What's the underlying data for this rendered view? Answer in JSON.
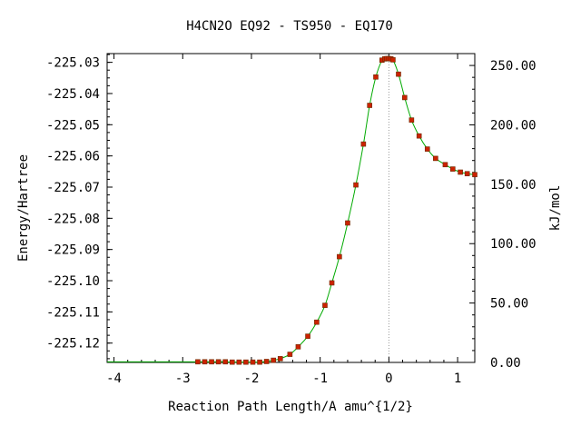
{
  "chart_data": {
    "type": "line",
    "title": "H4CN2O   EQ92 - TS950 - EQ170",
    "xlabel": "Reaction Path Length/A amu^{1/2}",
    "ylabel": "Energy/Hartree",
    "y2label": "kJ/mol",
    "xlim": [
      -4.1,
      1.25
    ],
    "ylim": [
      -225.1262,
      -225.0272
    ],
    "y2lim": [
      0,
      260
    ],
    "x_ticks": [
      -4,
      -3,
      -2,
      -1,
      0,
      1
    ],
    "y_ticks": [
      -225.03,
      -225.04,
      -225.05,
      -225.06,
      -225.07,
      -225.08,
      -225.09,
      -225.1,
      -225.11,
      -225.12
    ],
    "y2_ticks": [
      0,
      50,
      100,
      150,
      200,
      250
    ],
    "x_tick_labels": [
      "-4",
      "-3",
      "-2",
      "-1",
      "0",
      "1"
    ],
    "y_tick_labels": [
      "-225.03",
      "-225.04",
      "-225.05",
      "-225.06",
      "-225.07",
      "-225.08",
      "-225.09",
      "-225.10",
      "-225.11",
      "-225.12"
    ],
    "y2_tick_labels": [
      "0.00",
      "50.00",
      "100.00",
      "150.00",
      "200.00",
      "250.00"
    ],
    "ts_x": 0,
    "grid": false,
    "line_color": "#00aa00",
    "marker_color": "#cc2200",
    "marker_edge_color": "#6b2a00",
    "ts_line_color": "#999999",
    "series": [
      {
        "x": [
          -2.78,
          -2.68,
          -2.58,
          -2.48,
          -2.38,
          -2.28,
          -2.18,
          -2.08,
          -1.98,
          -1.88,
          -1.78,
          -1.68,
          -1.58,
          -1.44,
          -1.32,
          -1.18,
          -1.05,
          -0.93,
          -0.83,
          -0.72,
          -0.6,
          -0.48,
          -0.37,
          -0.28,
          -0.19,
          -0.1,
          -0.06,
          -0.03,
          0.0,
          0.03,
          0.06,
          0.14,
          0.23,
          0.33,
          0.44,
          0.56,
          0.68,
          0.82,
          0.93,
          1.04,
          1.14,
          1.25
        ],
        "y": [
          -225.126,
          -225.126,
          -225.126,
          -225.126,
          -225.126,
          -225.1261,
          -225.1261,
          -225.1261,
          -225.1261,
          -225.1261,
          -225.1259,
          -225.1255,
          -225.125,
          -225.1236,
          -225.1212,
          -225.1178,
          -225.1133,
          -225.1079,
          -225.1007,
          -225.0923,
          -225.0815,
          -225.0693,
          -225.0562,
          -225.0438,
          -225.0347,
          -225.0293,
          -225.0289,
          -225.0288,
          -225.0288,
          -225.0289,
          -225.0292,
          -225.0338,
          -225.0413,
          -225.0485,
          -225.0536,
          -225.0578,
          -225.0608,
          -225.0628,
          -225.0642,
          -225.0652,
          -225.0657,
          -225.066
        ]
      }
    ]
  }
}
